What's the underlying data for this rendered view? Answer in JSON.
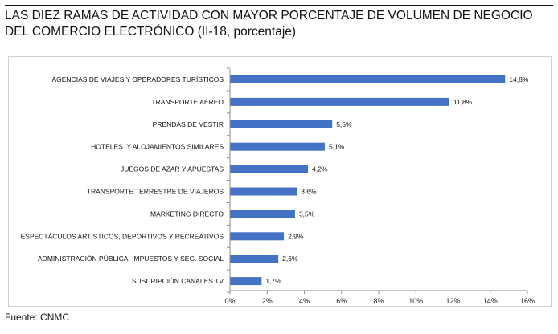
{
  "title": {
    "line1": "LAS DIEZ RAMAS DE ACTIVIDAD CON MAYOR PORCENTAJE DE VOLUMEN DE NEGOCIO",
    "line2": "DEL COMERCIO ELECTRÓNICO (II-18, porcentaje)"
  },
  "source": "Fuente: CNMC",
  "colors": {
    "bar": "#4472c4",
    "axis": "#8c8c8c",
    "frame": "#d0d0d0"
  },
  "chart_data": {
    "type": "bar",
    "orientation": "horizontal",
    "categories": [
      "AGENCIAS DE VIAJES Y OPERADORES TURÍSTICOS",
      "TRANSPORTE AÉREO",
      "PRENDAS DE VESTIR",
      "HOTELES  Y ALOJAMIENTOS SIMILARES",
      "JUEGOS DE AZAR Y APUESTAS",
      "TRANSPORTE TERRESTRE DE VIAJEROS",
      "MARKETING DIRECTO",
      "ESPECTÁCULOS ARTÍSTICOS, DEPORTIVOS Y RECREATIVOS",
      "ADMINISTRACIÓN PÚBLICA, IMPUESTOS Y SEG. SOCIAL",
      "SUSCRIPCIÓN CANALES TV"
    ],
    "values": [
      14.8,
      11.8,
      5.5,
      5.1,
      4.2,
      3.6,
      3.5,
      2.9,
      2.6,
      1.7
    ],
    "value_labels": [
      "14,8%",
      "11,8%",
      "5,5%",
      "5,1%",
      "4,2%",
      "3,6%",
      "3,5%",
      "2,9%",
      "2,6%",
      "1,7%"
    ],
    "xlim": [
      0,
      16
    ],
    "xticks": [
      0,
      2,
      4,
      6,
      8,
      10,
      12,
      14,
      16
    ],
    "xtick_labels": [
      "0%",
      "2%",
      "4%",
      "6%",
      "8%",
      "10%",
      "12%",
      "14%",
      "16%"
    ],
    "grid": false,
    "legend": "none"
  }
}
